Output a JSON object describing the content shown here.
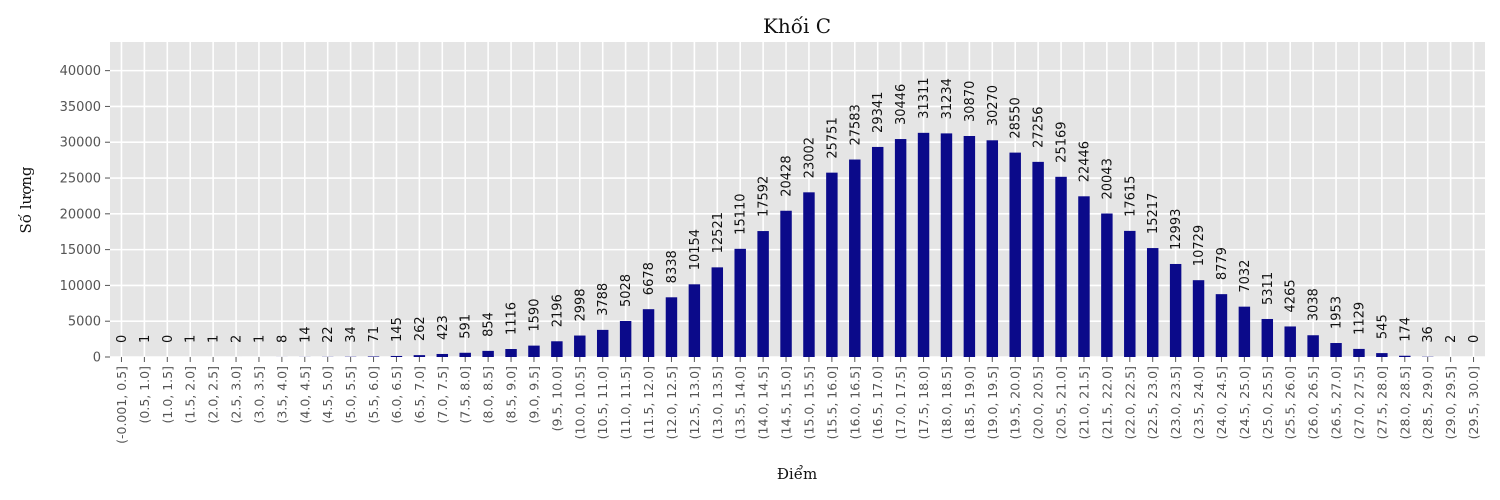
{
  "chart_data": {
    "type": "bar",
    "title": "Khối C",
    "xlabel": "Điểm",
    "ylabel": "Số lượng",
    "ylim": [
      0,
      44000
    ],
    "yticks": [
      0,
      5000,
      10000,
      15000,
      20000,
      25000,
      30000,
      35000,
      40000
    ],
    "grid": true,
    "colors": {
      "bar": "#0b0a8a",
      "plot_bg": "#e5e5e5",
      "grid": "#ffffff"
    },
    "categories": [
      "(-0.001, 0.5]",
      "(0.5, 1.0]",
      "(1.0, 1.5]",
      "(1.5, 2.0]",
      "(2.0, 2.5]",
      "(2.5, 3.0]",
      "(3.0, 3.5]",
      "(3.5, 4.0]",
      "(4.0, 4.5]",
      "(4.5, 5.0]",
      "(5.0, 5.5]",
      "(5.5, 6.0]",
      "(6.0, 6.5]",
      "(6.5, 7.0]",
      "(7.0, 7.5]",
      "(7.5, 8.0]",
      "(8.0, 8.5]",
      "(8.5, 9.0]",
      "(9.0, 9.5]",
      "(9.5, 10.0]",
      "(10.0, 10.5]",
      "(10.5, 11.0]",
      "(11.0, 11.5]",
      "(11.5, 12.0]",
      "(12.0, 12.5]",
      "(12.5, 13.0]",
      "(13.0, 13.5]",
      "(13.5, 14.0]",
      "(14.0, 14.5]",
      "(14.5, 15.0]",
      "(15.0, 15.5]",
      "(15.5, 16.0]",
      "(16.0, 16.5]",
      "(16.5, 17.0]",
      "(17.0, 17.5]",
      "(17.5, 18.0]",
      "(18.0, 18.5]",
      "(18.5, 19.0]",
      "(19.0, 19.5]",
      "(19.5, 20.0]",
      "(20.0, 20.5]",
      "(20.5, 21.0]",
      "(21.0, 21.5]",
      "(21.5, 22.0]",
      "(22.0, 22.5]",
      "(22.5, 23.0]",
      "(23.0, 23.5]",
      "(23.5, 24.0]",
      "(24.0, 24.5]",
      "(24.5, 25.0]",
      "(25.0, 25.5]",
      "(25.5, 26.0]",
      "(26.0, 26.5]",
      "(26.5, 27.0]",
      "(27.0, 27.5]",
      "(27.5, 28.0]",
      "(28.0, 28.5]",
      "(28.5, 29.0]",
      "(29.0, 29.5]",
      "(29.5, 30.0]"
    ],
    "values": [
      0,
      1,
      0,
      1,
      1,
      2,
      1,
      8,
      14,
      22,
      34,
      71,
      145,
      262,
      423,
      591,
      854,
      1116,
      1590,
      2196,
      2998,
      3788,
      5028,
      6678,
      8338,
      10154,
      12521,
      15110,
      17592,
      20428,
      23002,
      25751,
      27583,
      29341,
      30446,
      31311,
      31234,
      30870,
      30270,
      28550,
      27256,
      25169,
      22446,
      20043,
      17615,
      15217,
      12993,
      10729,
      8779,
      7032,
      5311,
      4265,
      3038,
      1953,
      1129,
      545,
      174,
      36,
      2,
      0
    ]
  }
}
